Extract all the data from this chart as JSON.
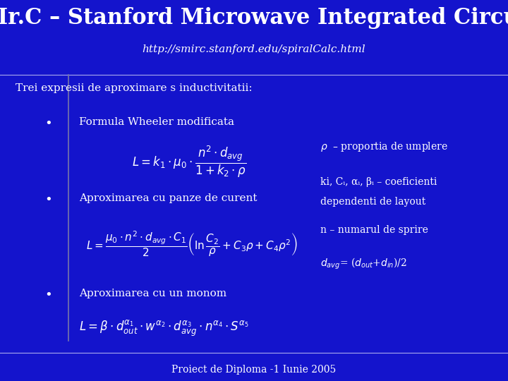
{
  "bg_color": "#1414cc",
  "body_bg": "#2525bb",
  "title": "SMIr.C – Stanford Microwave Integrated Circuits",
  "subtitle": "http://smirc.stanford.edu/spiralCalc.html",
  "intro_text": "Trei expresii de aproximare s inductivitatii:",
  "bullet1": "Formula Wheeler modificata",
  "bullet2": "Aproximarea cu panze de curent",
  "bullet3": "Aproximarea cu un monom",
  "note1": "ρ – proportia de umplere",
  "note2a": "ki, Cᵢ, αᵢ, βᵢ – coeficienti",
  "note2b": "dependenti de layout",
  "note3": "n – numarul de sprire",
  "footer": "Proiect de Diploma -1 Iunie 2005",
  "text_color": "#ffffff"
}
